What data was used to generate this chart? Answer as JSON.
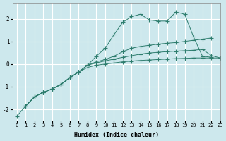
{
  "xlabel": "Humidex (Indice chaleur)",
  "bg_color": "#cde8ed",
  "grid_color": "#ffffff",
  "line_color": "#2e7d6e",
  "xlim": [
    -0.5,
    23
  ],
  "ylim": [
    -2.5,
    2.7
  ],
  "yticks": [
    -2,
    -1,
    0,
    1,
    2
  ],
  "xticks": [
    0,
    1,
    2,
    3,
    4,
    5,
    6,
    7,
    8,
    9,
    10,
    11,
    12,
    13,
    14,
    15,
    16,
    17,
    18,
    19,
    20,
    21,
    22,
    23
  ],
  "series": [
    {
      "x": [
        1,
        2,
        3,
        4,
        5,
        6,
        7,
        8,
        9,
        10,
        11,
        12,
        13,
        14,
        15,
        16,
        17,
        18,
        19,
        20,
        21,
        22
      ],
      "y": [
        -1.85,
        -1.45,
        -1.25,
        -1.1,
        -0.9,
        -0.6,
        -0.35,
        -0.05,
        0.35,
        0.7,
        1.3,
        1.85,
        2.1,
        2.2,
        1.95,
        1.9,
        1.9,
        2.3,
        2.2,
        1.2,
        0.35,
        0.3
      ],
      "marker": "+",
      "linestyle": "-",
      "markersize": 4
    },
    {
      "x": [
        1,
        2,
        3,
        4,
        5,
        6,
        7,
        8,
        9,
        10,
        11,
        12,
        13,
        14,
        15,
        16,
        17,
        18,
        19,
        20,
        21,
        22
      ],
      "y": [
        -1.85,
        -1.45,
        -1.25,
        -1.1,
        -0.9,
        -0.6,
        -0.35,
        -0.05,
        0.1,
        0.2,
        0.35,
        0.55,
        0.7,
        0.78,
        0.83,
        0.88,
        0.92,
        0.95,
        1.0,
        1.05,
        1.1,
        1.15
      ],
      "marker": "+",
      "linestyle": "-",
      "markersize": 4
    },
    {
      "x": [
        1,
        2,
        3,
        4,
        5,
        6,
        7,
        8,
        9,
        10,
        11,
        12,
        13,
        14,
        15,
        16,
        17,
        18,
        19,
        20,
        21,
        22,
        23
      ],
      "y": [
        -1.85,
        -1.45,
        -1.25,
        -1.1,
        -0.9,
        -0.6,
        -0.35,
        -0.05,
        0.05,
        0.14,
        0.22,
        0.3,
        0.37,
        0.44,
        0.49,
        0.52,
        0.55,
        0.57,
        0.59,
        0.61,
        0.65,
        0.38,
        0.27
      ],
      "marker": "+",
      "linestyle": "-",
      "markersize": 4
    },
    {
      "x": [
        0,
        1,
        2,
        3,
        4,
        5,
        6,
        7,
        8,
        9,
        10,
        11,
        12,
        13,
        14,
        15,
        16,
        17,
        18,
        19,
        20,
        21,
        22,
        23
      ],
      "y": [
        -2.3,
        -1.85,
        -1.45,
        -1.25,
        -1.1,
        -0.9,
        -0.6,
        -0.35,
        -0.15,
        -0.05,
        0.0,
        0.05,
        0.1,
        0.13,
        0.16,
        0.18,
        0.2,
        0.22,
        0.24,
        0.25,
        0.27,
        0.27,
        0.27,
        0.27
      ],
      "marker": "+",
      "linestyle": "-",
      "markersize": 4
    }
  ]
}
